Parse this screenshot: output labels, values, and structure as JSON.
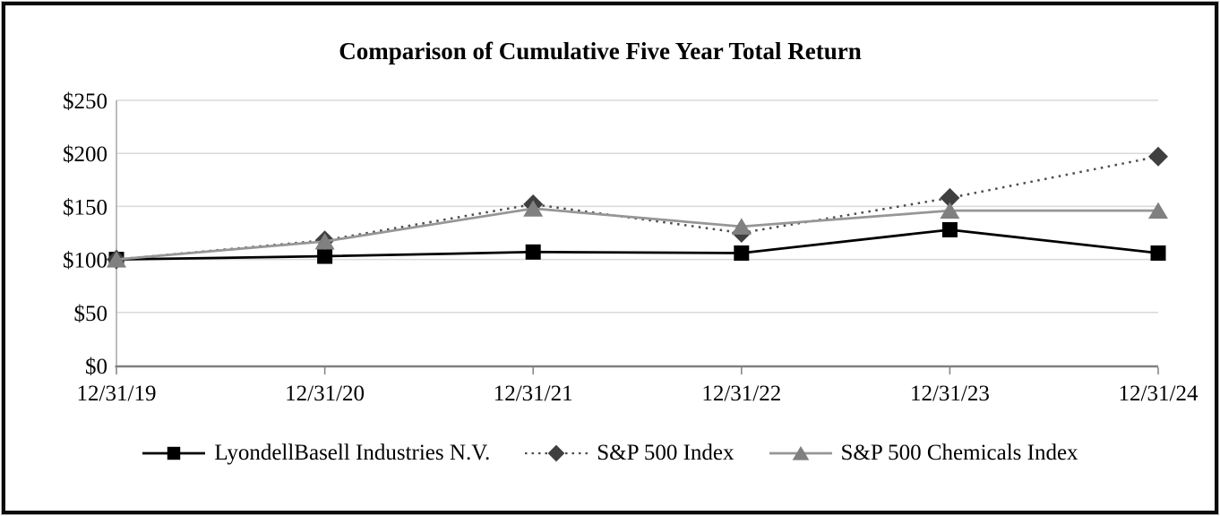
{
  "chart_data": {
    "type": "line",
    "title": "Comparison of Cumulative Five Year Total Return",
    "categories": [
      "12/31/19",
      "12/31/20",
      "12/31/21",
      "12/31/22",
      "12/31/23",
      "12/31/24"
    ],
    "series": [
      {
        "name": "LyondellBasell Industries N.V.",
        "values": [
          100,
          103,
          107,
          106,
          128,
          106
        ],
        "color": "#000000",
        "marker": "square",
        "marker_color": "#000000",
        "dash": "solid"
      },
      {
        "name": "S&P 500 Index",
        "values": [
          100,
          118,
          152,
          125,
          158,
          197
        ],
        "color": "#4d4d4d",
        "marker": "diamond",
        "marker_color": "#3f3f3f",
        "dash": "dotted"
      },
      {
        "name": "S&P 500 Chemicals Index",
        "values": [
          100,
          117,
          148,
          131,
          146,
          146
        ],
        "color": "#969696",
        "marker": "triangle",
        "marker_color": "#808080",
        "dash": "solid"
      }
    ],
    "xlabel": "",
    "ylabel": "",
    "ylim": [
      0,
      250
    ],
    "y_ticks": [
      0,
      50,
      100,
      150,
      200,
      250
    ],
    "y_tick_labels": [
      "$0",
      "$50",
      "$100",
      "$150",
      "$200",
      "$250"
    ],
    "grid": "horizontal",
    "legend_position": "bottom",
    "colors": {
      "axis": "#808080",
      "y_axis": "#a6a6a6",
      "gridline": "#d9d9d9",
      "text": "#000000",
      "background": "#ffffff",
      "frame_border": "#0b0b0b"
    }
  }
}
